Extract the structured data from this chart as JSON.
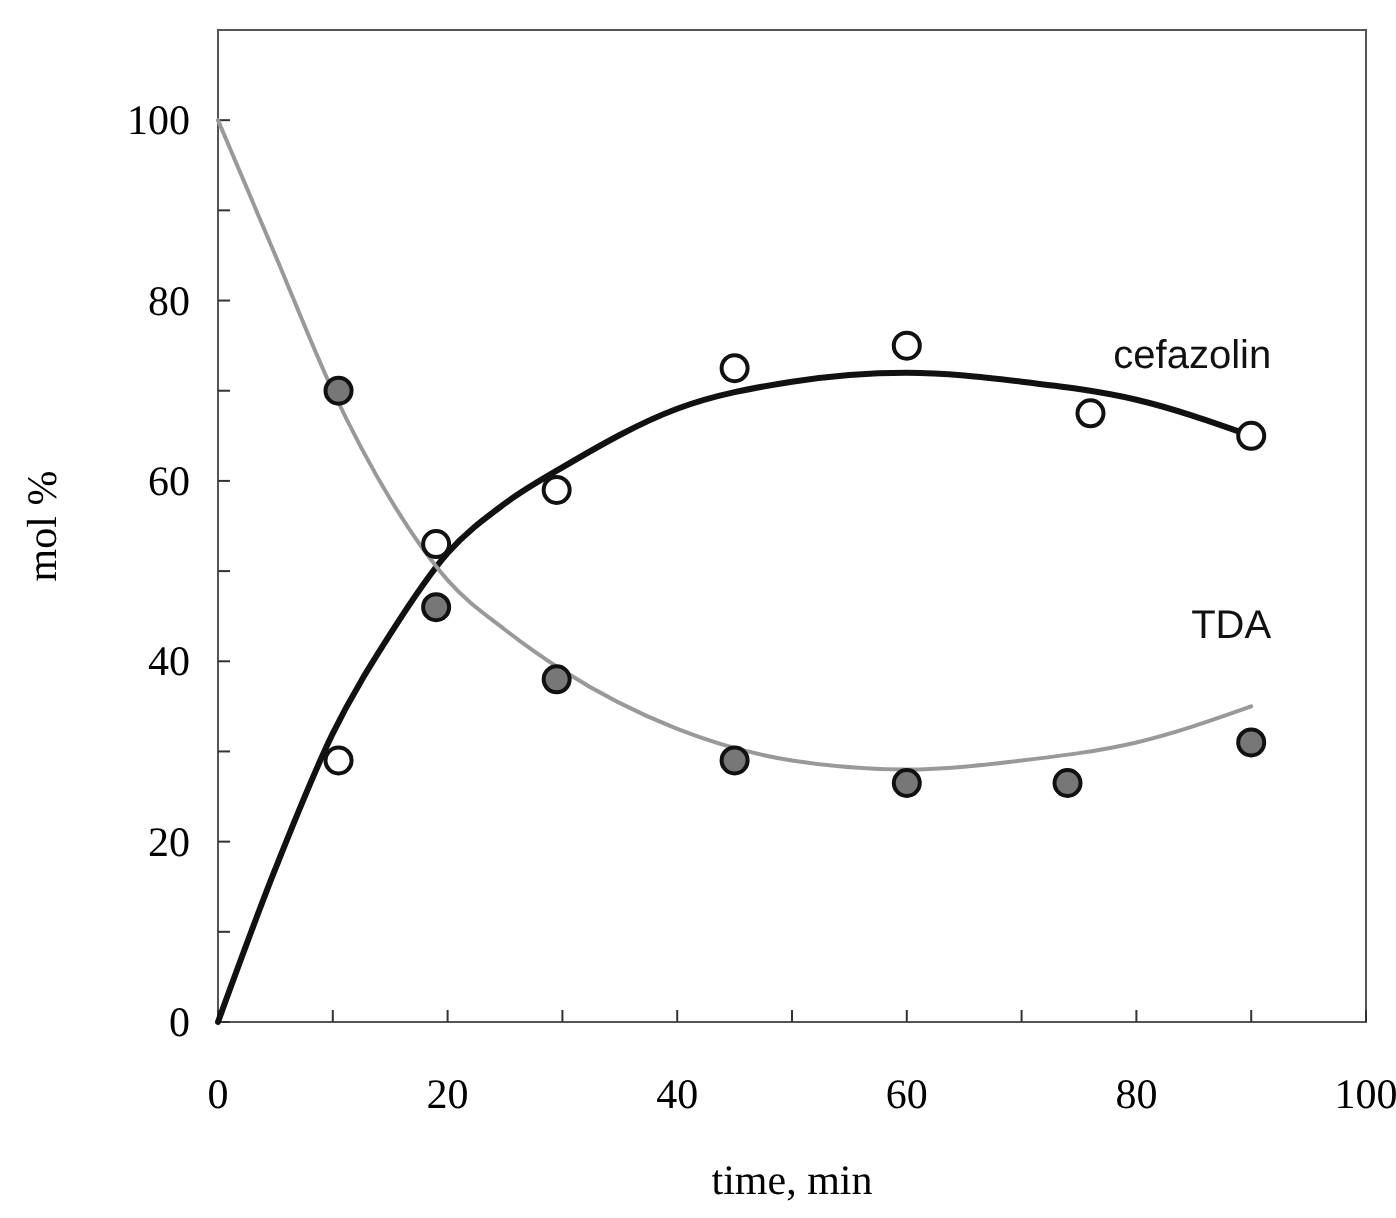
{
  "chart_data": {
    "type": "scatter",
    "xlabel": "time, min",
    "ylabel": "mol %",
    "xlim": [
      0,
      100
    ],
    "ylim": [
      0,
      110
    ],
    "xticks": [
      0,
      {
        "value": 10,
        "label": null
      },
      20,
      {
        "value": 30,
        "label": null
      },
      40,
      {
        "value": 50,
        "label": null
      },
      60,
      {
        "value": 70,
        "label": null
      },
      80,
      {
        "value": 90,
        "label": null
      },
      100
    ],
    "yticks": [
      0,
      {
        "value": 10,
        "label": null
      },
      20,
      {
        "value": 30,
        "label": null
      },
      40,
      {
        "value": 50,
        "label": null
      },
      60,
      {
        "value": 70,
        "label": null
      },
      80,
      {
        "value": 90,
        "label": null
      },
      100
    ],
    "grid": false,
    "legend": false,
    "marker": "circle",
    "series": [
      {
        "type": "line",
        "name": "cefazolin",
        "color": "#111111",
        "marker": "none",
        "x": [
          0,
          5,
          10,
          15,
          20,
          25,
          30,
          40,
          50,
          60,
          70,
          80,
          90
        ],
        "values": [
          0,
          17,
          32,
          43,
          52,
          57.5,
          61.5,
          68,
          71,
          72,
          71,
          69,
          65
        ]
      },
      {
        "type": "line",
        "name": "TDA",
        "color": "#999999",
        "marker": "none",
        "x": [
          0,
          5,
          10,
          15,
          20,
          25,
          30,
          40,
          50,
          60,
          70,
          80,
          90
        ],
        "values": [
          100,
          85,
          70,
          58,
          49,
          43.5,
          39,
          32.5,
          29,
          28,
          29,
          31,
          35
        ]
      },
      {
        "color": "#ffffff",
        "x": [
          10.5,
          19,
          29.5,
          45,
          60,
          76,
          90
        ],
        "values": [
          29,
          53,
          59,
          72.5,
          75,
          67.5,
          65
        ]
      },
      {
        "color": "#777777",
        "x": [
          10.5,
          19,
          29.5,
          45,
          60,
          74,
          90
        ],
        "values": [
          70,
          46,
          38,
          29,
          26.5,
          26.5,
          31
        ]
      }
    ]
  }
}
